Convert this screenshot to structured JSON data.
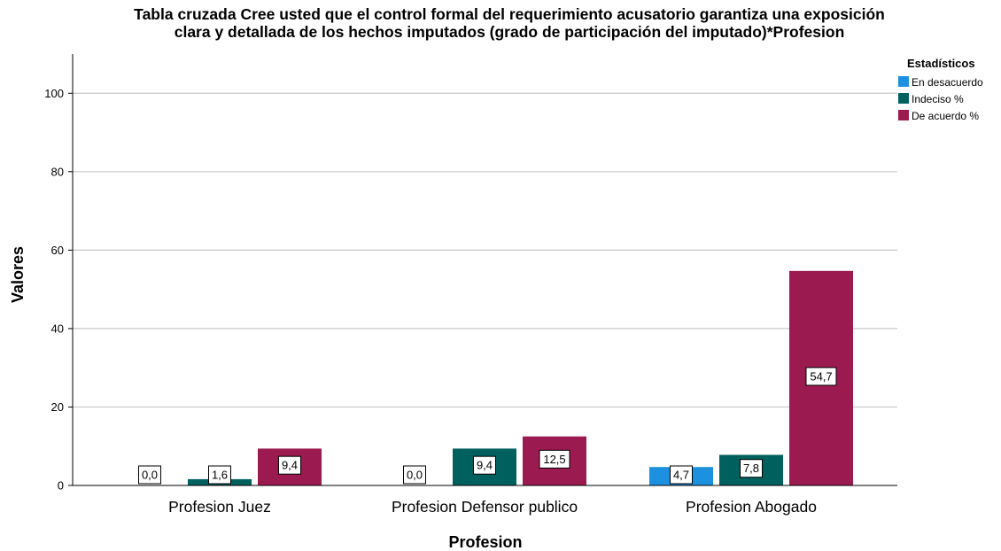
{
  "chart_data": {
    "type": "bar",
    "title_lines": [
      "Tabla cruzada Cree usted que el control formal del requerimiento acusatorio garantiza una exposición",
      "clara y detallada de los hechos imputados (grado de participación del imputado)*Profesion"
    ],
    "xlabel": "Profesion",
    "ylabel": "Valores",
    "categories": [
      "Profesion Juez",
      "Profesion Defensor publico",
      "Profesion Abogado"
    ],
    "series": [
      {
        "name": "En desacuerdo",
        "color": "#1E90E0",
        "values": [
          0.0,
          0.0,
          4.7
        ],
        "labels": [
          "0,0",
          "0,0",
          "4,7"
        ]
      },
      {
        "name": "Indeciso %",
        "color": "#00605E",
        "values": [
          1.6,
          9.4,
          7.8
        ],
        "labels": [
          "1,6",
          "9,4",
          "7,8"
        ]
      },
      {
        "name": "De acuerdo %",
        "color": "#9B1A50",
        "values": [
          9.4,
          12.5,
          54.7
        ],
        "labels": [
          "9,4",
          "12,5",
          "54,7"
        ]
      }
    ],
    "ylim": [
      0,
      110
    ],
    "yticks": [
      0,
      20,
      40,
      60,
      80,
      100
    ],
    "grid": true,
    "legend": {
      "title": "Estadísticos",
      "placement": "top-right"
    }
  }
}
